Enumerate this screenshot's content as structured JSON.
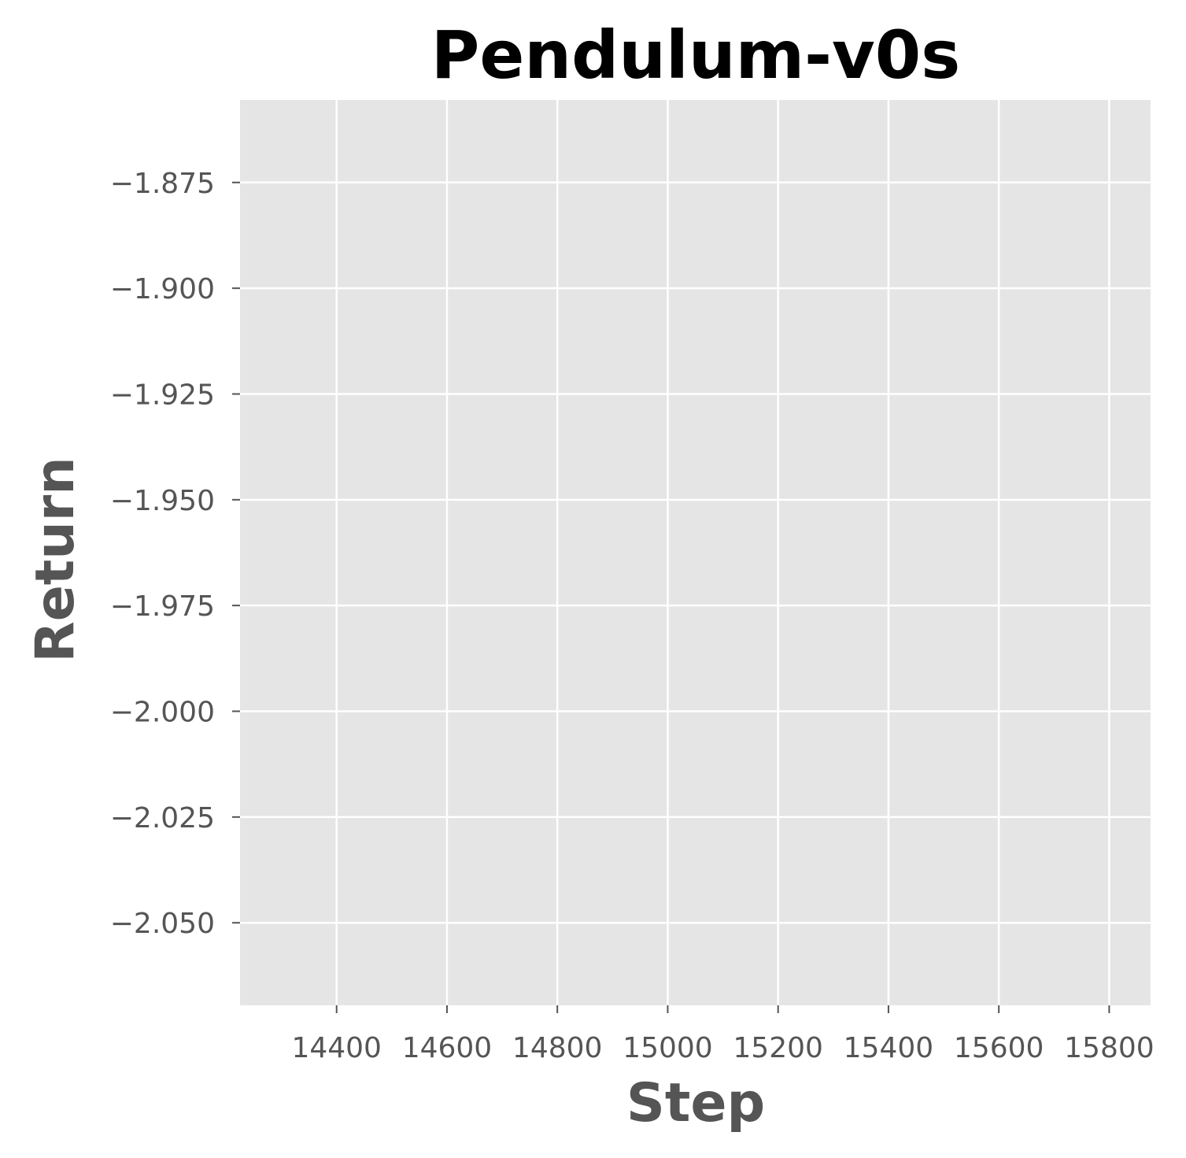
{
  "chart_data": {
    "type": "line",
    "title": "Pendulum-v0s",
    "xlabel": "Step",
    "ylabel": "Return",
    "xlim": [
      14225,
      15875
    ],
    "ylim": [
      -2.0695,
      -1.8555
    ],
    "x_ticks": [
      14400,
      14600,
      14800,
      15000,
      15200,
      15400,
      15600,
      15800
    ],
    "x_tick_labels": [
      "14400",
      "14600",
      "14800",
      "15000",
      "15200",
      "15400",
      "15600",
      "15800"
    ],
    "y_ticks": [
      -1.875,
      -1.9,
      -1.925,
      -1.95,
      -1.975,
      -2.0,
      -2.025,
      -2.05
    ],
    "y_tick_labels": [
      "−1.875",
      "−1.900",
      "−1.925",
      "−1.950",
      "−1.975",
      "−2.000",
      "−2.025",
      "−2.050"
    ],
    "grid": true,
    "background_color": "#e5e5e5",
    "grid_color": "#ffffff",
    "tick_color": "#555555",
    "series": []
  }
}
